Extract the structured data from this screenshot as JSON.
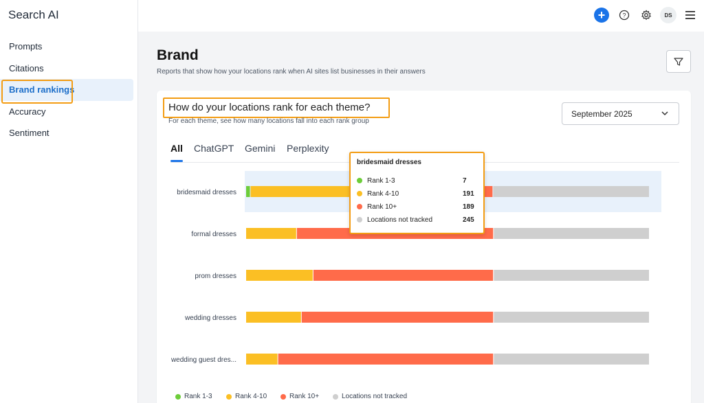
{
  "app": {
    "title": "Search AI"
  },
  "sidebar": {
    "items": [
      {
        "label": "Prompts"
      },
      {
        "label": "Citations"
      },
      {
        "label": "Brand rankings",
        "active": true
      },
      {
        "label": "Accuracy"
      },
      {
        "label": "Sentiment"
      }
    ]
  },
  "topbar": {
    "icons": [
      "plus-icon",
      "help-icon",
      "gear-icon",
      "avatar",
      "menu-icon"
    ],
    "avatar_initials": "DS"
  },
  "page": {
    "title": "Brand",
    "subtitle": "Reports that show how your locations rank when AI sites list businesses in their answers"
  },
  "card": {
    "title": "How do your locations rank for each theme?",
    "subtitle": "For each theme, see how many locations fall into each rank group",
    "month": "September 2025",
    "tabs": [
      {
        "label": "All",
        "active": true
      },
      {
        "label": "ChatGPT"
      },
      {
        "label": "Gemini"
      },
      {
        "label": "Perplexity"
      }
    ]
  },
  "colors": {
    "rank_1_3": "#6dcd3a",
    "rank_4_10": "#fbbf24",
    "rank_10_plus": "#ff6b4a",
    "not_tracked": "#cfcfcf",
    "accent": "#1a73e8",
    "highlight": "#f39c12"
  },
  "chart_data": {
    "type": "bar",
    "stacked": true,
    "orientation": "horizontal",
    "categories": [
      "bridesmaid dresses",
      "formal dresses",
      "prom dresses",
      "wedding dresses",
      "wedding guest dres..."
    ],
    "series": [
      {
        "name": "Rank 1-3",
        "values": [
          7,
          0,
          0,
          0,
          0
        ]
      },
      {
        "name": "Rank 4-10",
        "values": [
          191,
          95,
          126,
          104,
          60
        ]
      },
      {
        "name": "Rank 10+",
        "values": [
          189,
          369,
          338,
          360,
          404
        ]
      },
      {
        "name": "Locations not tracked",
        "values": [
          245,
          292,
          292,
          292,
          292
        ]
      }
    ],
    "legend": "bottom-left",
    "highlighted_category": "bridesmaid dresses"
  },
  "tooltip": {
    "title": "bridesmaid dresses",
    "rows": [
      {
        "label": "Rank 1-3",
        "value": "7"
      },
      {
        "label": "Rank 4-10",
        "value": "191"
      },
      {
        "label": "Rank 10+",
        "value": "189"
      },
      {
        "label": "Locations not tracked",
        "value": "245"
      }
    ]
  },
  "legend": [
    {
      "label": "Rank 1-3"
    },
    {
      "label": "Rank 4-10"
    },
    {
      "label": "Rank 10+"
    },
    {
      "label": "Locations not tracked"
    }
  ]
}
